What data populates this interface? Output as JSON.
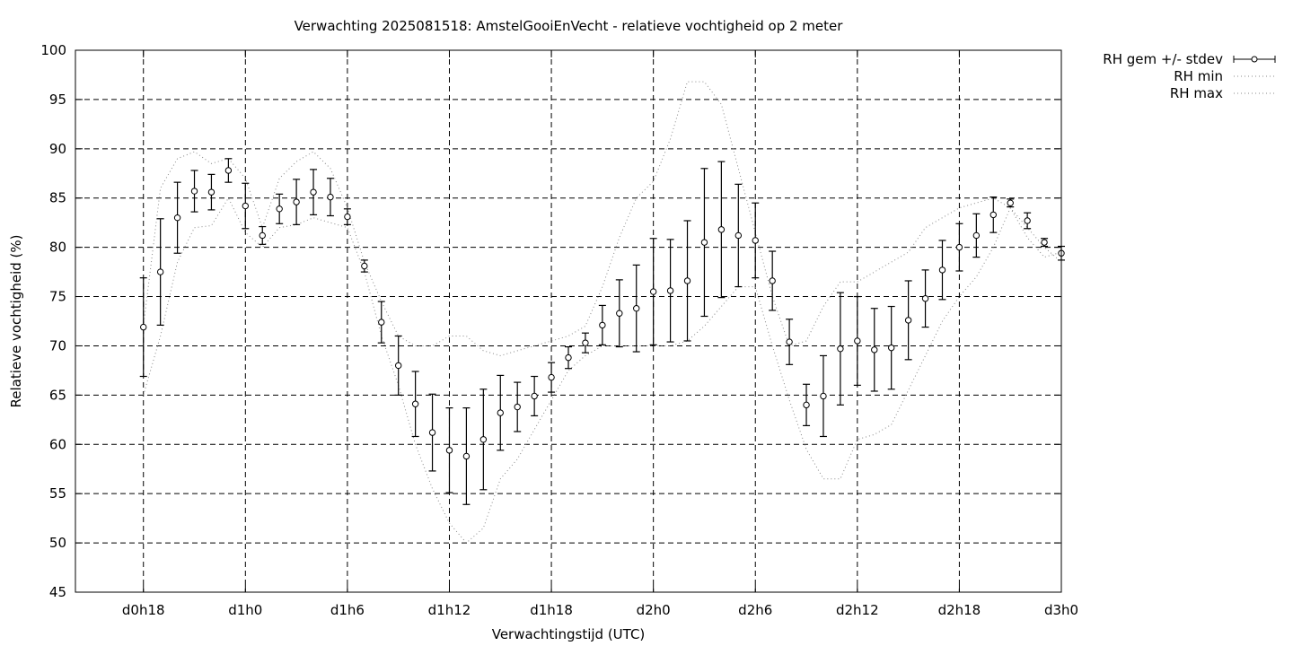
{
  "chart_data": {
    "type": "line",
    "title": "Verwachting 2025081518: AmstelGooiEnVecht - relatieve vochtigheid op 2 meter",
    "xlabel": "Verwachtingstijd (UTC)",
    "ylabel": "Relatieve vochtigheid (%)",
    "ylim": [
      45,
      100
    ],
    "xlim_hours": [
      14,
      72
    ],
    "x_ticks": [
      {
        "hour": 18,
        "label": "d0h18"
      },
      {
        "hour": 24,
        "label": "d1h0"
      },
      {
        "hour": 30,
        "label": "d1h6"
      },
      {
        "hour": 36,
        "label": "d1h12"
      },
      {
        "hour": 42,
        "label": "d1h18"
      },
      {
        "hour": 48,
        "label": "d2h0"
      },
      {
        "hour": 54,
        "label": "d2h6"
      },
      {
        "hour": 60,
        "label": "d2h12"
      },
      {
        "hour": 66,
        "label": "d2h18"
      },
      {
        "hour": 72,
        "label": "d3h0"
      }
    ],
    "y_ticks": [
      45,
      50,
      55,
      60,
      65,
      70,
      75,
      80,
      85,
      90,
      95,
      100
    ],
    "grid": true,
    "legend_position": "right-outside",
    "x_hours": [
      18,
      19,
      20,
      21,
      22,
      23,
      24,
      25,
      26,
      27,
      28,
      29,
      30,
      31,
      32,
      33,
      34,
      35,
      36,
      37,
      38,
      39,
      40,
      41,
      42,
      43,
      44,
      45,
      46,
      47,
      48,
      49,
      50,
      51,
      52,
      53,
      54,
      55,
      56,
      57,
      58,
      59,
      60,
      61,
      62,
      63,
      64,
      65,
      66,
      67,
      68,
      69,
      70,
      71,
      72
    ],
    "series": [
      {
        "name": "RH gem +/- stdev",
        "style": "errorbar",
        "mean": [
          71.9,
          77.5,
          83.0,
          85.7,
          85.6,
          87.8,
          84.2,
          81.2,
          83.9,
          84.6,
          85.6,
          85.1,
          83.1,
          78.1,
          72.4,
          68.0,
          64.1,
          61.2,
          59.4,
          58.8,
          60.5,
          63.2,
          63.8,
          64.9,
          66.8,
          68.8,
          70.3,
          72.1,
          73.3,
          73.8,
          75.5,
          75.6,
          76.6,
          80.5,
          81.8,
          81.2,
          80.7,
          76.6,
          70.4,
          64.0,
          64.9,
          69.7,
          70.5,
          69.6,
          69.8,
          72.6,
          74.8,
          77.7,
          80.0,
          81.2,
          83.3,
          84.5,
          82.7,
          80.5,
          79.4
        ],
        "stdev": [
          5.0,
          5.4,
          3.6,
          2.1,
          1.8,
          1.2,
          2.3,
          0.9,
          1.5,
          2.3,
          2.3,
          1.9,
          0.8,
          0.6,
          2.1,
          3.0,
          3.3,
          3.9,
          4.3,
          4.9,
          5.1,
          3.8,
          2.5,
          2.0,
          1.5,
          1.1,
          1.0,
          2.0,
          3.4,
          4.4,
          5.4,
          5.2,
          6.1,
          7.5,
          6.9,
          5.2,
          3.8,
          3.0,
          2.3,
          2.1,
          4.1,
          5.7,
          4.5,
          4.2,
          4.2,
          4.0,
          2.9,
          3.0,
          2.4,
          2.2,
          1.8,
          0.4,
          0.8,
          0.4,
          0.7
        ]
      },
      {
        "name": "RH min",
        "style": "dotted",
        "values": [
          65.0,
          71.0,
          78.5,
          82.0,
          82.2,
          85.0,
          81.5,
          80.0,
          82.0,
          82.3,
          83.0,
          82.5,
          82.0,
          77.5,
          71.0,
          66.0,
          60.0,
          55.5,
          52.0,
          50.0,
          51.5,
          56.5,
          58.5,
          61.5,
          64.5,
          67.5,
          69.0,
          70.0,
          70.0,
          70.0,
          70.0,
          70.0,
          70.5,
          72.0,
          74.0,
          76.0,
          76.0,
          70.0,
          64.5,
          59.5,
          56.5,
          56.5,
          60.5,
          61.0,
          62.0,
          65.5,
          69.0,
          72.5,
          75.0,
          77.0,
          80.0,
          84.0,
          82.0,
          80.0,
          78.5
        ]
      },
      {
        "name": "RH max",
        "style": "dotted",
        "values": [
          72.0,
          86.0,
          89.0,
          89.7,
          88.5,
          89.0,
          87.0,
          82.0,
          87.0,
          88.7,
          89.7,
          88.0,
          84.0,
          78.5,
          74.5,
          71.0,
          70.0,
          70.0,
          71.0,
          71.0,
          69.5,
          69.0,
          69.5,
          70.0,
          70.5,
          71.0,
          72.0,
          76.0,
          81.0,
          85.0,
          86.7,
          91.0,
          96.8,
          96.8,
          94.5,
          88.0,
          81.5,
          75.0,
          70.0,
          70.5,
          74.0,
          76.5,
          76.5,
          77.5,
          78.5,
          79.5,
          82.0,
          83.0,
          84.0,
          84.5,
          85.0,
          84.0,
          81.0,
          79.0,
          79.5
        ]
      }
    ]
  }
}
